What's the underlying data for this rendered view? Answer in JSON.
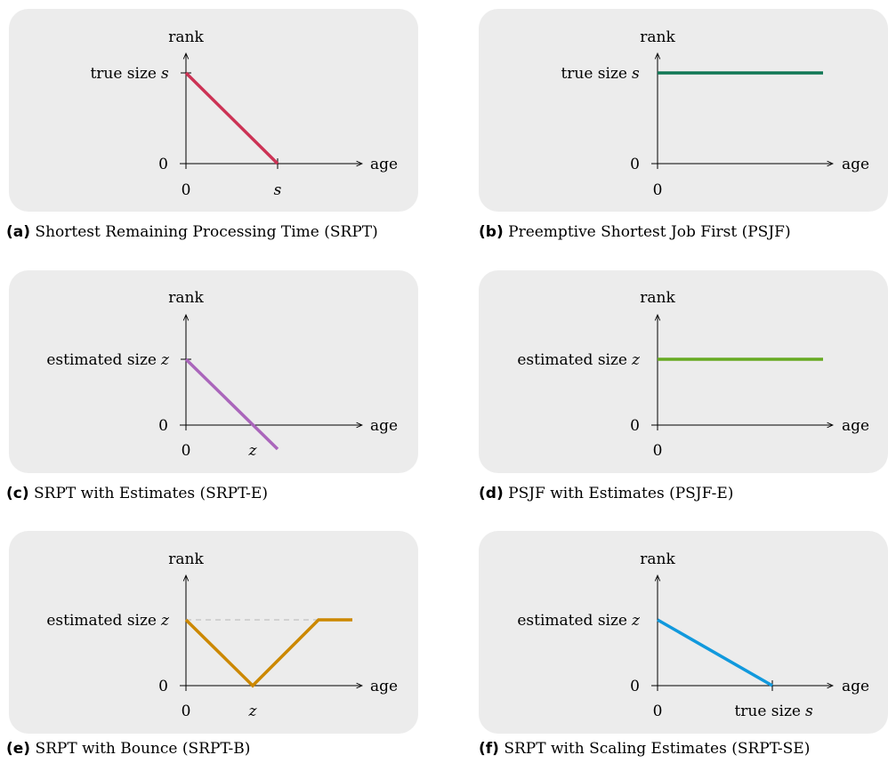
{
  "panels": [
    {
      "id": "a",
      "caption_label": "(a)",
      "caption_text": "Shortest Remaining Processing Time (SRPT)",
      "y_axis_label": "rank",
      "x_axis_label": "age",
      "y_ticks": [
        {
          "value": "0"
        },
        {
          "value_prefix": "true size",
          "value_var": "s"
        }
      ],
      "x_ticks": [
        {
          "value": "0"
        },
        {
          "value_var": "s"
        }
      ],
      "line_color": "#cc3355",
      "curve": "decreasing line from rank s at age 0 to rank 0 at age s"
    },
    {
      "id": "b",
      "caption_label": "(b)",
      "caption_text": "Preemptive Shortest Job First (PSJF)",
      "y_axis_label": "rank",
      "x_axis_label": "age",
      "y_ticks": [
        {
          "value": "0"
        },
        {
          "value_prefix": "true size",
          "value_var": "s"
        }
      ],
      "x_ticks": [
        {
          "value": "0"
        }
      ],
      "line_color": "#117755",
      "curve": "constant rank s"
    },
    {
      "id": "c",
      "caption_label": "(c)",
      "caption_text": "SRPT with Estimates (SRPT-E)",
      "y_axis_label": "rank",
      "x_axis_label": "age",
      "y_ticks": [
        {
          "value": "0"
        },
        {
          "value_prefix": "estimated size",
          "value_var": "z"
        }
      ],
      "x_ticks": [
        {
          "value": "0"
        },
        {
          "value_var": "z"
        }
      ],
      "line_color": "#aa66bb",
      "curve": "decreasing line from rank z at age 0, crossing 0 at age z and continuing below"
    },
    {
      "id": "d",
      "caption_label": "(d)",
      "caption_text": "PSJF with Estimates (PSJF-E)",
      "y_axis_label": "rank",
      "x_axis_label": "age",
      "y_ticks": [
        {
          "value": "0"
        },
        {
          "value_prefix": "estimated size",
          "value_var": "z"
        }
      ],
      "x_ticks": [
        {
          "value": "0"
        }
      ],
      "line_color": "#66aa22",
      "curve": "constant rank z"
    },
    {
      "id": "e",
      "caption_label": "(e)",
      "caption_text": "SRPT with Bounce (SRPT-B)",
      "y_axis_label": "rank",
      "x_axis_label": "age",
      "y_ticks": [
        {
          "value": "0"
        },
        {
          "value_prefix": "estimated size",
          "value_var": "z"
        }
      ],
      "x_ticks": [
        {
          "value": "0"
        },
        {
          "value_var": "z"
        }
      ],
      "line_color": "#cc8800",
      "curve": "decreases from z to 0 at age z, rises back to z, then stays at z"
    },
    {
      "id": "f",
      "caption_label": "(f)",
      "caption_text": "SRPT with Scaling Estimates (SRPT-SE)",
      "y_axis_label": "rank",
      "x_axis_label": "age",
      "y_ticks": [
        {
          "value": "0"
        },
        {
          "value_prefix": "estimated size",
          "value_var": "z"
        }
      ],
      "x_ticks": [
        {
          "value": "0"
        },
        {
          "value_prefix": "true size",
          "value_var": "s"
        }
      ],
      "line_color": "#1199dd",
      "curve": "decreasing line from rank z at age 0 to rank 0 at true size s"
    }
  ]
}
